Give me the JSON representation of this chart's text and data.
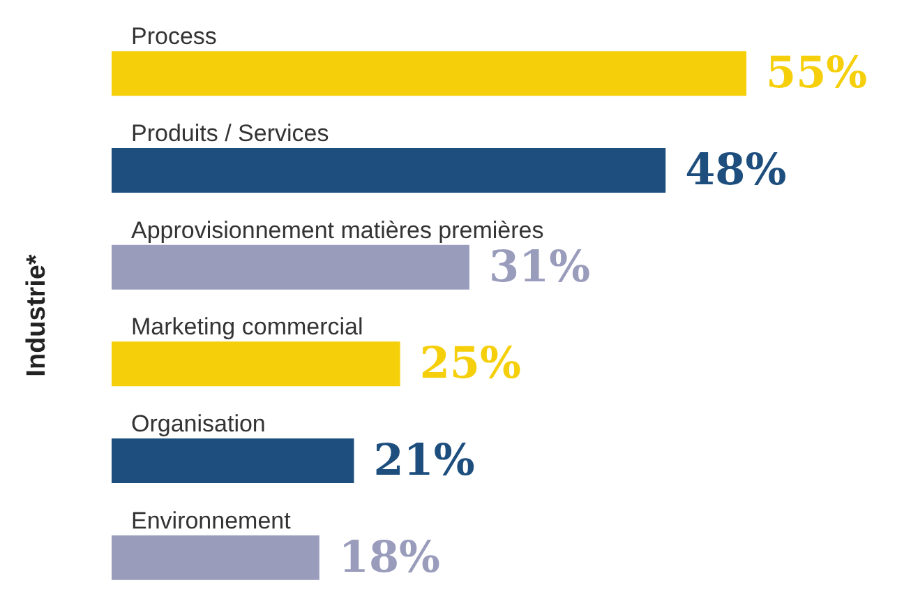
{
  "chart_data": {
    "type": "bar",
    "orientation": "horizontal",
    "ylabel": "Industrie*",
    "categories": [
      "Process",
      "Produits / Services",
      "Approvisionnement matières premières",
      "Marketing commercial",
      "Organisation",
      "Environnement"
    ],
    "values": [
      55,
      48,
      31,
      25,
      21,
      18
    ],
    "colors": [
      "#f5cf0a",
      "#1d4e7d",
      "#9a9cbc",
      "#f5cf0a",
      "#1d4e7d",
      "#9a9cbc"
    ],
    "value_labels": [
      "55%",
      "48%",
      "31%",
      "25%",
      "21%",
      "18%"
    ],
    "xlim": [
      0,
      55
    ],
    "tick_labels": false
  }
}
